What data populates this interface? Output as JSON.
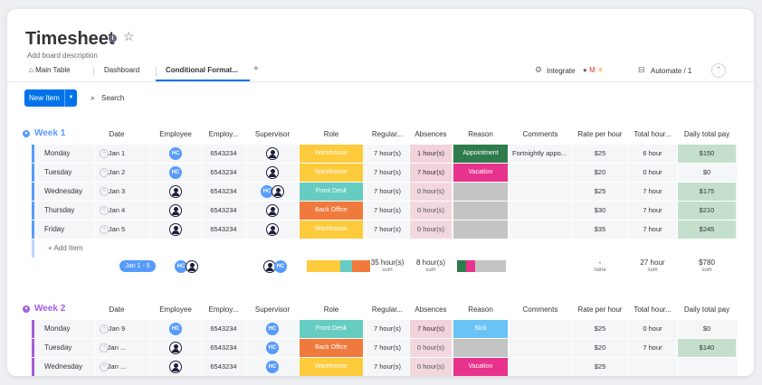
{
  "board": {
    "title": "Timesheet",
    "description": "Add board description",
    "tabs": [
      {
        "label": "Main Table",
        "icon": "home-icon"
      },
      {
        "label": "Dashboard"
      },
      {
        "label": "Conditional Format..."
      }
    ],
    "add_tab": "+",
    "integrate_label": "Integrate",
    "automate_label": "Automate / 1"
  },
  "toolbar": {
    "new_item": "New Item",
    "search": "Search"
  },
  "columns": [
    "Date",
    "Employee",
    "Employ...",
    "Supervisor",
    "Role",
    "Regular...",
    "Absences",
    "Reason",
    "Comments",
    "Rate per hour",
    "Total hour...",
    "Daily total pay"
  ],
  "colors": {
    "Warehouse": "#fdcb3c",
    "Front Desk": "#66ccc1",
    "Back Office": "#f07a3d",
    "Appointment": "#2f7b4c",
    "Vacation": "#e8338d",
    "Sick": "#6ac3f5",
    "week1": "#579bfc",
    "week2": "#a25ddc",
    "pay_green": "#c4e0cd",
    "absence_pink": "#f2d3d9",
    "empty_gray": "#c4c4c4"
  },
  "groups": [
    {
      "title": "Week 1",
      "color": "#579bfc",
      "rows": [
        {
          "name": "Monday",
          "date": "Jan 1",
          "employee": "HC",
          "emp_id": "6543234",
          "supervisor": "person",
          "role": "Warehouse",
          "regular": "7 hour(s)",
          "absences": "1 hour(s)",
          "reason": "Appointment",
          "comments": "Fortnightly appo...",
          "rate": "$25",
          "total": "6 hour",
          "pay": "$150"
        },
        {
          "name": "Tuesday",
          "date": "Jan 2",
          "employee": "HC",
          "emp_id": "6543234",
          "supervisor": "person",
          "role": "Warehouse",
          "regular": "7 hour(s)",
          "absences": "7 hour(s)",
          "reason": "Vacation",
          "comments": "",
          "rate": "$20",
          "total": "0 hour",
          "pay": "$0"
        },
        {
          "name": "Wednesday",
          "date": "Jan 3",
          "employee": "person",
          "emp_id": "6543234",
          "supervisor": "HC+person",
          "role": "Front Desk",
          "regular": "7 hour(s)",
          "absences": "0 hour(s)",
          "reason": "",
          "comments": "",
          "rate": "$25",
          "total": "7 hour",
          "pay": "$175"
        },
        {
          "name": "Thursday",
          "date": "Jan 4",
          "employee": "person",
          "emp_id": "6543234",
          "supervisor": "person",
          "role": "Back Office",
          "regular": "7 hour(s)",
          "absences": "0 hour(s)",
          "reason": "",
          "comments": "",
          "rate": "$30",
          "total": "7 hour",
          "pay": "$210"
        },
        {
          "name": "Friday",
          "date": "Jan 5",
          "employee": "person",
          "emp_id": "6543234",
          "supervisor": "person",
          "role": "Warehouse",
          "regular": "7 hour(s)",
          "absences": "0 hour(s)",
          "reason": "",
          "comments": "",
          "rate": "$35",
          "total": "7 hour",
          "pay": "$245"
        }
      ],
      "add_item": "+ Add Item",
      "summary": {
        "date": "Jan 1 - 5",
        "regular": "35 hour(s)",
        "regular_sub": "sum",
        "absences": "8 hour(s)",
        "absences_sub": "sum",
        "rate": "-",
        "rate_sub": "none",
        "total": "27 hour",
        "total_sub": "sum",
        "pay": "$780",
        "pay_sub": "sum"
      }
    },
    {
      "title": "Week 2",
      "color": "#a25ddc",
      "rows": [
        {
          "name": "Monday",
          "date": "Jan 9",
          "employee": "HC",
          "emp_id": "6543234",
          "supervisor": "HC",
          "role": "Front Desk",
          "regular": "7 hour(s)",
          "absences": "7 hour(s)",
          "reason": "Sick",
          "comments": "",
          "rate": "$25",
          "total": "0 hour",
          "pay": "$0"
        },
        {
          "name": "Tuesday",
          "date": "Jan ...",
          "employee": "person",
          "emp_id": "6543234",
          "supervisor": "HC",
          "role": "Back Office",
          "regular": "7 hour(s)",
          "absences": "0 hour(s)",
          "reason": "",
          "comments": "",
          "rate": "$20",
          "total": "7 hour",
          "pay": "$140"
        },
        {
          "name": "Wednesday",
          "date": "Jan ...",
          "employee": "person",
          "emp_id": "6543234",
          "supervisor": "HC",
          "role": "Warehouse",
          "regular": "7 hour(s)",
          "absences": "0 hour(s)",
          "reason": "Vacation",
          "comments": "",
          "rate": "$25",
          "total": "",
          "pay": ""
        }
      ]
    }
  ]
}
